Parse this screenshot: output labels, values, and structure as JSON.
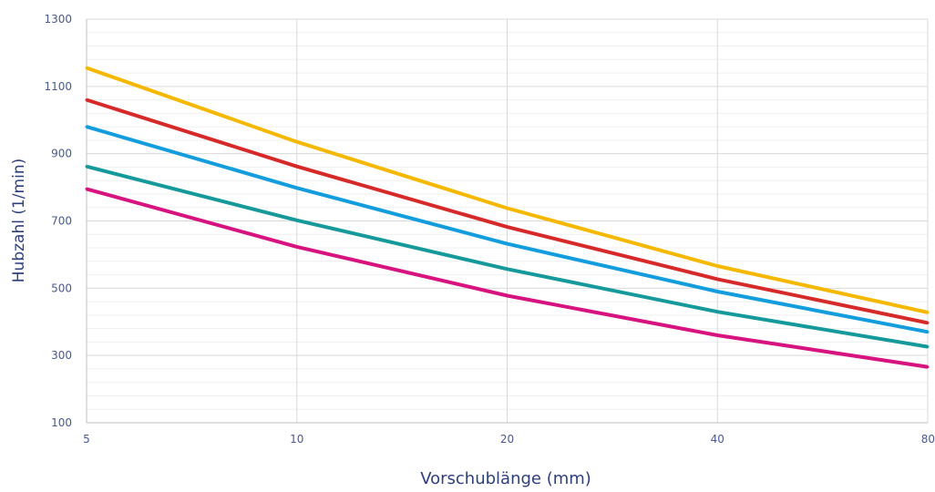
{
  "chart_data": {
    "type": "line",
    "title": "",
    "xlabel": "Vorschublänge (mm)",
    "ylabel": "Hubzahl (1/min)",
    "x_scale": "log2",
    "x": [
      5,
      10,
      20,
      40,
      80
    ],
    "x_tick_labels": [
      "5",
      "10",
      "20",
      "40",
      "80"
    ],
    "ylim": [
      100,
      1300
    ],
    "y_ticks": [
      100,
      300,
      500,
      700,
      900,
      1100,
      1300
    ],
    "y_tick_labels": [
      "100",
      "300",
      "500",
      "700",
      "900",
      "1100",
      "1300"
    ],
    "y_minor_step": 40,
    "grid": true,
    "legend": "none",
    "colors": {
      "axis_text": "#2e3f7a",
      "tick_text": "#4a5a8a",
      "major_grid": "#d9d9d9",
      "minor_grid": "#efefef",
      "axis_line": "#bfbfbf"
    },
    "series": [
      {
        "color": "#f5b800",
        "values": [
          1155,
          935,
          738,
          566,
          428
        ]
      },
      {
        "color": "#d62a2a",
        "values": [
          1060,
          862,
          682,
          527,
          397
        ]
      },
      {
        "color": "#139ddc",
        "values": [
          980,
          798,
          632,
          490,
          370
        ]
      },
      {
        "color": "#16999a",
        "values": [
          862,
          702,
          557,
          430,
          326
        ]
      },
      {
        "color": "#d6137f",
        "values": [
          795,
          623,
          478,
          360,
          266
        ]
      }
    ]
  }
}
